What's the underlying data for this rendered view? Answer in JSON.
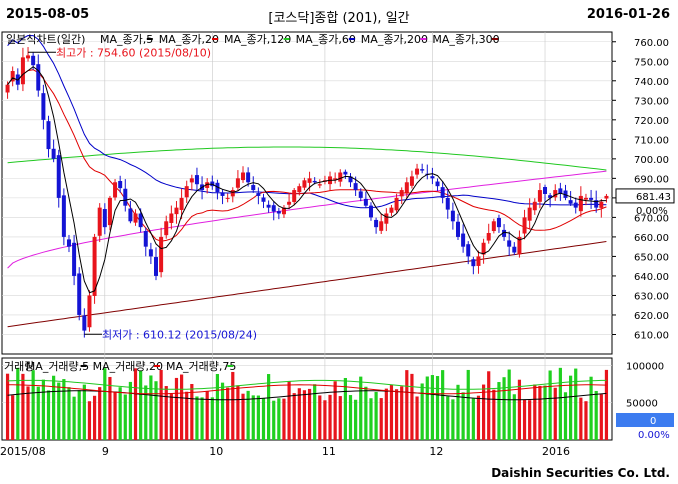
{
  "header": {
    "start_date": "2015-08-05",
    "title": "[코스닥]종합 (201), 일간",
    "end_date": "2016-01-26"
  },
  "footer": {
    "brand": "Daishin Securities Co. Ltd."
  },
  "colors": {
    "up": "#e8141c",
    "down": "#1414d4",
    "ma5": "#000000",
    "ma20": "#e00000",
    "ma60": "#0000c8",
    "ma120": "#20c820",
    "ma200": "#e020e0",
    "ma300": "#800000",
    "volume_up": "#e8141c",
    "volume_down": "#20d020"
  },
  "chart_data": [
    {
      "type": "candlestick",
      "title": "일본식차트(일간)",
      "legend": [
        "MA_종가,5",
        "MA_종가,20",
        "MA_종가,120",
        "MA_종가,60",
        "MA_종가,200",
        "MA_종가,300"
      ],
      "ylim": [
        600,
        765
      ],
      "yticks": [
        610,
        620,
        630,
        640,
        650,
        660,
        670,
        680,
        690,
        700,
        710,
        720,
        730,
        740,
        750,
        760
      ],
      "x_month_labels": [
        "2015/08",
        "9",
        "10",
        "11",
        "12",
        "2016"
      ],
      "last_value_label": "681.43",
      "change_label": "0.00%",
      "annotations": {
        "high": "최고가 : 754.60 (2015/08/10)",
        "low": "최저가 : 610.12 (2015/08/24)"
      },
      "close": [
        738,
        745,
        738,
        752,
        753,
        748,
        735,
        720,
        705,
        700,
        680,
        660,
        655,
        640,
        620,
        612,
        630,
        660,
        675,
        665,
        680,
        688,
        685,
        676,
        668,
        672,
        665,
        655,
        650,
        640,
        660,
        668,
        672,
        675,
        680,
        686,
        690,
        687,
        684,
        688,
        686,
        683,
        681,
        680,
        684,
        690,
        693,
        688,
        684,
        681,
        678,
        675,
        673,
        672,
        675,
        678,
        684,
        686,
        689,
        690,
        688,
        687,
        689,
        691,
        690,
        693,
        692,
        688,
        684,
        680,
        676,
        670,
        665,
        668,
        672,
        675,
        680,
        684,
        688,
        691,
        695,
        694,
        692,
        690,
        686,
        680,
        674,
        668,
        660,
        655,
        650,
        645,
        650,
        657,
        662,
        668,
        665,
        660,
        655,
        652,
        660,
        670,
        675,
        678,
        684,
        682,
        680,
        684,
        682,
        680,
        677,
        675,
        681,
        680,
        679,
        675,
        678,
        681
      ],
      "volume": {
        "ylim": [
          0,
          110000
        ],
        "yticks": [
          50000,
          100000
        ],
        "last_value_label": "0",
        "change_label": "0.00%",
        "legend": [
          "거래량",
          "MA_거래량,5",
          "MA_거래량,20",
          "MA_거래량,75"
        ]
      }
    }
  ]
}
